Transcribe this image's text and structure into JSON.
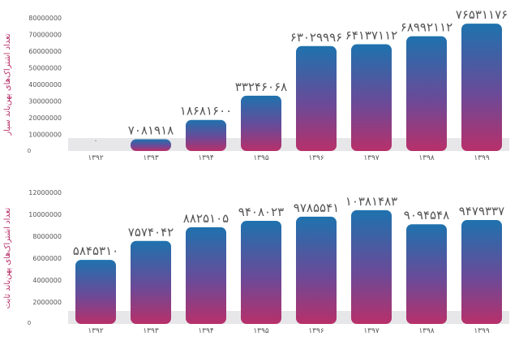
{
  "chart_data": [
    {
      "type": "bar",
      "ylabel": "تعداد اشتراک‌های پهن‌باند سیار",
      "categories": [
        "۱۳۹۲",
        "۱۳۹۳",
        "۱۳۹۴",
        "۱۳۹۵",
        "۱۳۹۶",
        "۱۳۹۷",
        "۱۳۹۸",
        "۱۳۹۹"
      ],
      "values": [
        0,
        7081918,
        18681600,
        33246068,
        63029996,
        64137112,
        68992112,
        76531176
      ],
      "data_labels": [
        "۰",
        "۷۰۸۱۹۱۸",
        "۱۸۶۸۱۶۰۰",
        "۳۳۲۴۶۰۶۸",
        "۶۳۰۲۹۹۹۶",
        "۶۴۱۳۷۱۱۲",
        "۶۸۹۹۲۱۱۲",
        "۷۶۵۳۱۱۷۶"
      ],
      "ylim": [
        0,
        80000000
      ],
      "yticks": [
        0,
        10000000,
        20000000,
        30000000,
        40000000,
        50000000,
        60000000,
        70000000,
        80000000
      ],
      "ytick_labels": [
        "0",
        "10000000",
        "20000000",
        "30000000",
        "40000000",
        "50000000",
        "60000000",
        "70000000",
        "80000000"
      ],
      "colors": {
        "bar_top": "#1e72ae",
        "bar_mid": "#6a4a98",
        "bar_bottom": "#b8306a",
        "band": "#e7e7ea",
        "text": "#555555",
        "ylabel": "#b8306a"
      }
    },
    {
      "type": "bar",
      "ylabel": "تعداد اشتراک‌های پهن‌باند ثابت",
      "categories": [
        "۱۳۹۲",
        "۱۳۹۳",
        "۱۳۹۴",
        "۱۳۹۵",
        "۱۳۹۶",
        "۱۳۹۷",
        "۱۳۹۸",
        "۱۳۹۹"
      ],
      "values": [
        5845310,
        7574042,
        8825105,
        9408023,
        9785541,
        10381483,
        9094548,
        9479337
      ],
      "data_labels": [
        "۵۸۴۵۳۱۰",
        "۷۵۷۴۰۴۲",
        "۸۸۲۵۱۰۵",
        "۹۴۰۸۰۲۳",
        "۹۷۸۵۵۴۱",
        "۱۰۳۸۱۴۸۳",
        "۹۰۹۴۵۴۸",
        "۹۴۷۹۳۳۷"
      ],
      "ylim": [
        0,
        12000000
      ],
      "yticks": [
        0,
        2000000,
        4000000,
        6000000,
        8000000,
        10000000,
        12000000
      ],
      "ytick_labels": [
        "0",
        "2000000",
        "4000000",
        "6000000",
        "8000000",
        "10000000",
        "12000000"
      ],
      "colors": {
        "bar_top": "#1e72ae",
        "bar_mid": "#6a4a98",
        "bar_bottom": "#b8306a",
        "band": "#e7e7ea",
        "text": "#555555",
        "ylabel": "#b8306a"
      }
    }
  ]
}
